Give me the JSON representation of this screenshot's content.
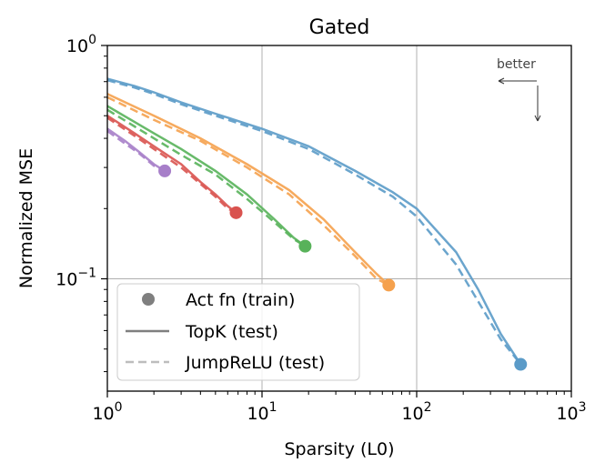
{
  "chart_data": {
    "type": "line",
    "title": "Gated",
    "xlabel": "Sparsity (L0)",
    "ylabel": "Normalized MSE",
    "x_scale": "log",
    "y_scale": "log",
    "xlim": [
      1,
      1000
    ],
    "ylim": [
      0.033,
      1
    ],
    "x_ticks": [
      {
        "value": 1,
        "base": "10",
        "exp": "0"
      },
      {
        "value": 10,
        "base": "10",
        "exp": "1"
      },
      {
        "value": 100,
        "base": "10",
        "exp": "2"
      },
      {
        "value": 1000,
        "base": "10",
        "exp": "3"
      }
    ],
    "y_ticks": [
      {
        "value": 0.1,
        "base": "10",
        "exp": "−1"
      },
      {
        "value": 1,
        "base": "10",
        "exp": "0"
      }
    ],
    "grid": true,
    "annotation": "better",
    "legend": {
      "placement": "lower-left",
      "entries": [
        {
          "label": "Act fn (train)",
          "style": "marker",
          "color": "#7f7f7f"
        },
        {
          "label": "TopK (test)",
          "style": "solid",
          "color": "#7f7f7f"
        },
        {
          "label": "JumpReLU (test)",
          "style": "dashed",
          "color": "#bdbdbd"
        }
      ]
    },
    "series": [
      {
        "color": "#5b9bc8",
        "train_point": [
          470,
          0.043
        ],
        "topk": [
          [
            1,
            0.72
          ],
          [
            1.5,
            0.67
          ],
          [
            2,
            0.63
          ],
          [
            3,
            0.57
          ],
          [
            5,
            0.51
          ],
          [
            10,
            0.44
          ],
          [
            20,
            0.37
          ],
          [
            40,
            0.29
          ],
          [
            70,
            0.235
          ],
          [
            100,
            0.2
          ],
          [
            180,
            0.13
          ],
          [
            250,
            0.09
          ],
          [
            350,
            0.058
          ],
          [
            470,
            0.043
          ]
        ],
        "jumprelu": [
          [
            1,
            0.71
          ],
          [
            1.5,
            0.66
          ],
          [
            2,
            0.62
          ],
          [
            3,
            0.56
          ],
          [
            5,
            0.5
          ],
          [
            10,
            0.43
          ],
          [
            20,
            0.36
          ],
          [
            40,
            0.28
          ],
          [
            70,
            0.225
          ],
          [
            100,
            0.185
          ],
          [
            180,
            0.115
          ],
          [
            250,
            0.08
          ],
          [
            350,
            0.055
          ],
          [
            470,
            0.043
          ]
        ]
      },
      {
        "color": "#f5a14d",
        "train_point": [
          66,
          0.094
        ],
        "topk": [
          [
            1,
            0.62
          ],
          [
            2,
            0.5
          ],
          [
            4,
            0.4
          ],
          [
            8,
            0.31
          ],
          [
            15,
            0.24
          ],
          [
            25,
            0.18
          ],
          [
            40,
            0.13
          ],
          [
            55,
            0.105
          ],
          [
            66,
            0.094
          ]
        ],
        "jumprelu": [
          [
            1,
            0.6
          ],
          [
            2,
            0.48
          ],
          [
            4,
            0.39
          ],
          [
            8,
            0.3
          ],
          [
            15,
            0.23
          ],
          [
            25,
            0.17
          ],
          [
            40,
            0.125
          ],
          [
            55,
            0.1
          ],
          [
            66,
            0.094
          ]
        ]
      },
      {
        "color": "#58b25a",
        "train_point": [
          19,
          0.138
        ],
        "topk": [
          [
            1,
            0.55
          ],
          [
            1.5,
            0.47
          ],
          [
            2,
            0.42
          ],
          [
            3,
            0.36
          ],
          [
            5,
            0.29
          ],
          [
            8,
            0.23
          ],
          [
            12,
            0.18
          ],
          [
            16,
            0.15
          ],
          [
            19,
            0.138
          ]
        ],
        "jumprelu": [
          [
            1,
            0.53
          ],
          [
            1.5,
            0.45
          ],
          [
            2,
            0.4
          ],
          [
            3,
            0.34
          ],
          [
            5,
            0.28
          ],
          [
            8,
            0.22
          ],
          [
            12,
            0.175
          ],
          [
            16,
            0.148
          ],
          [
            19,
            0.138
          ]
        ]
      },
      {
        "color": "#d9534f",
        "train_point": [
          6.8,
          0.192
        ],
        "topk": [
          [
            1,
            0.5
          ],
          [
            1.5,
            0.42
          ],
          [
            2,
            0.37
          ],
          [
            3,
            0.31
          ],
          [
            4,
            0.26
          ],
          [
            5,
            0.23
          ],
          [
            6,
            0.205
          ],
          [
            6.8,
            0.192
          ]
        ],
        "jumprelu": [
          [
            1,
            0.49
          ],
          [
            1.5,
            0.41
          ],
          [
            2,
            0.36
          ],
          [
            3,
            0.3
          ],
          [
            4,
            0.255
          ],
          [
            5,
            0.225
          ],
          [
            6,
            0.2
          ],
          [
            6.8,
            0.192
          ]
        ]
      },
      {
        "color": "#a77fc9",
        "train_point": [
          2.35,
          0.29
        ],
        "topk": [
          [
            1,
            0.44
          ],
          [
            1.3,
            0.39
          ],
          [
            1.6,
            0.35
          ],
          [
            2,
            0.31
          ],
          [
            2.35,
            0.29
          ]
        ],
        "jumprelu": [
          [
            1,
            0.43
          ],
          [
            1.3,
            0.38
          ],
          [
            1.6,
            0.345
          ],
          [
            2,
            0.305
          ],
          [
            2.35,
            0.29
          ]
        ]
      }
    ]
  }
}
